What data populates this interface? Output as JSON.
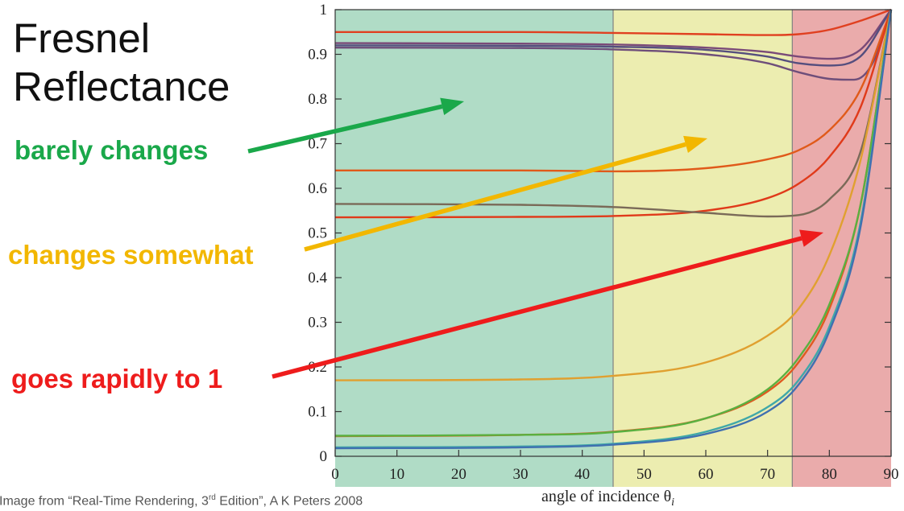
{
  "slide": {
    "title": "Fresnel Reflectance",
    "credit_prefix": "Image from “Real-Time Rendering, 3",
    "credit_sup": "rd",
    "credit_suffix": " Edition”, A K Peters 2008"
  },
  "annotations": [
    {
      "text": "barely changes",
      "color": "#1aa84a",
      "region": "0-45"
    },
    {
      "text": "changes somewhat",
      "color": "#f2b700",
      "region": "45-75"
    },
    {
      "text": "goes rapidly to 1",
      "color": "#ee1c1c",
      "region": "75-90"
    }
  ],
  "chart_data": {
    "type": "line",
    "title": "",
    "xlabel": "angle of incidence θ",
    "xlabel_subscript": "i",
    "ylabel": "",
    "xlim": [
      0,
      90
    ],
    "ylim": [
      0,
      1
    ],
    "xticks": [
      0,
      10,
      20,
      30,
      40,
      50,
      60,
      70,
      80,
      90
    ],
    "yticks": [
      0,
      0.1,
      0.2,
      0.3,
      0.4,
      0.5,
      0.6,
      0.7,
      0.8,
      0.9,
      1
    ],
    "grid": false,
    "regions": [
      {
        "from": 0,
        "to": 45,
        "color": "#b0dcc6"
      },
      {
        "from": 45,
        "to": 74,
        "color": "#ecedb0"
      },
      {
        "from": 74,
        "to": 90,
        "color": "#eaabab"
      }
    ],
    "series": [
      {
        "color": "#e04020",
        "x": [
          0,
          30,
          45,
          60,
          70,
          75,
          80,
          85,
          90
        ],
        "y": [
          0.95,
          0.95,
          0.948,
          0.945,
          0.943,
          0.945,
          0.955,
          0.975,
          1.0
        ]
      },
      {
        "color": "#7a4a78",
        "x": [
          0,
          30,
          45,
          60,
          70,
          75,
          80,
          85,
          90
        ],
        "y": [
          0.925,
          0.924,
          0.922,
          0.915,
          0.905,
          0.895,
          0.89,
          0.91,
          1.0
        ]
      },
      {
        "color": "#554e7e",
        "x": [
          0,
          30,
          45,
          60,
          70,
          75,
          80,
          85,
          90
        ],
        "y": [
          0.92,
          0.919,
          0.917,
          0.91,
          0.895,
          0.88,
          0.875,
          0.895,
          1.0
        ]
      },
      {
        "color": "#6e4e7a",
        "x": [
          0,
          30,
          45,
          60,
          70,
          75,
          80,
          84,
          87,
          90
        ],
        "y": [
          0.915,
          0.914,
          0.911,
          0.9,
          0.88,
          0.86,
          0.845,
          0.843,
          0.88,
          1.0
        ]
      },
      {
        "color": "#e05a1a",
        "x": [
          0,
          30,
          45,
          60,
          70,
          75,
          80,
          85,
          90
        ],
        "y": [
          0.64,
          0.64,
          0.638,
          0.645,
          0.665,
          0.685,
          0.73,
          0.82,
          1.0
        ]
      },
      {
        "color": "#e03a1a",
        "x": [
          0,
          30,
          45,
          60,
          70,
          75,
          80,
          85,
          90
        ],
        "y": [
          0.535,
          0.536,
          0.538,
          0.55,
          0.578,
          0.61,
          0.67,
          0.78,
          1.0
        ]
      },
      {
        "color": "#7a6a58",
        "x": [
          0,
          30,
          45,
          60,
          70,
          75,
          80,
          85,
          90
        ],
        "y": [
          0.565,
          0.563,
          0.558,
          0.545,
          0.537,
          0.54,
          0.575,
          0.68,
          1.0
        ]
      },
      {
        "color": "#e05a20",
        "x": [
          0,
          30,
          45,
          60,
          70,
          75,
          80,
          85,
          90
        ],
        "y": [
          0.045,
          0.048,
          0.055,
          0.085,
          0.145,
          0.21,
          0.33,
          0.56,
          1.0
        ]
      },
      {
        "color": "#e0a030",
        "x": [
          0,
          30,
          45,
          60,
          70,
          75,
          80,
          85,
          90
        ],
        "y": [
          0.17,
          0.172,
          0.18,
          0.21,
          0.27,
          0.33,
          0.45,
          0.66,
          1.0
        ]
      },
      {
        "color": "#5ab040",
        "x": [
          0,
          30,
          45,
          60,
          70,
          75,
          80,
          85,
          90
        ],
        "y": [
          0.046,
          0.048,
          0.054,
          0.085,
          0.15,
          0.22,
          0.34,
          0.56,
          1.0
        ]
      },
      {
        "color": "#40a8a8",
        "x": [
          0,
          30,
          45,
          60,
          70,
          75,
          80,
          85,
          90
        ],
        "y": [
          0.02,
          0.022,
          0.028,
          0.055,
          0.11,
          0.17,
          0.29,
          0.52,
          1.0
        ]
      },
      {
        "color": "#4070b0",
        "x": [
          0,
          30,
          45,
          60,
          70,
          75,
          80,
          85,
          90
        ],
        "y": [
          0.018,
          0.02,
          0.026,
          0.05,
          0.1,
          0.16,
          0.28,
          0.51,
          1.0
        ]
      }
    ]
  }
}
